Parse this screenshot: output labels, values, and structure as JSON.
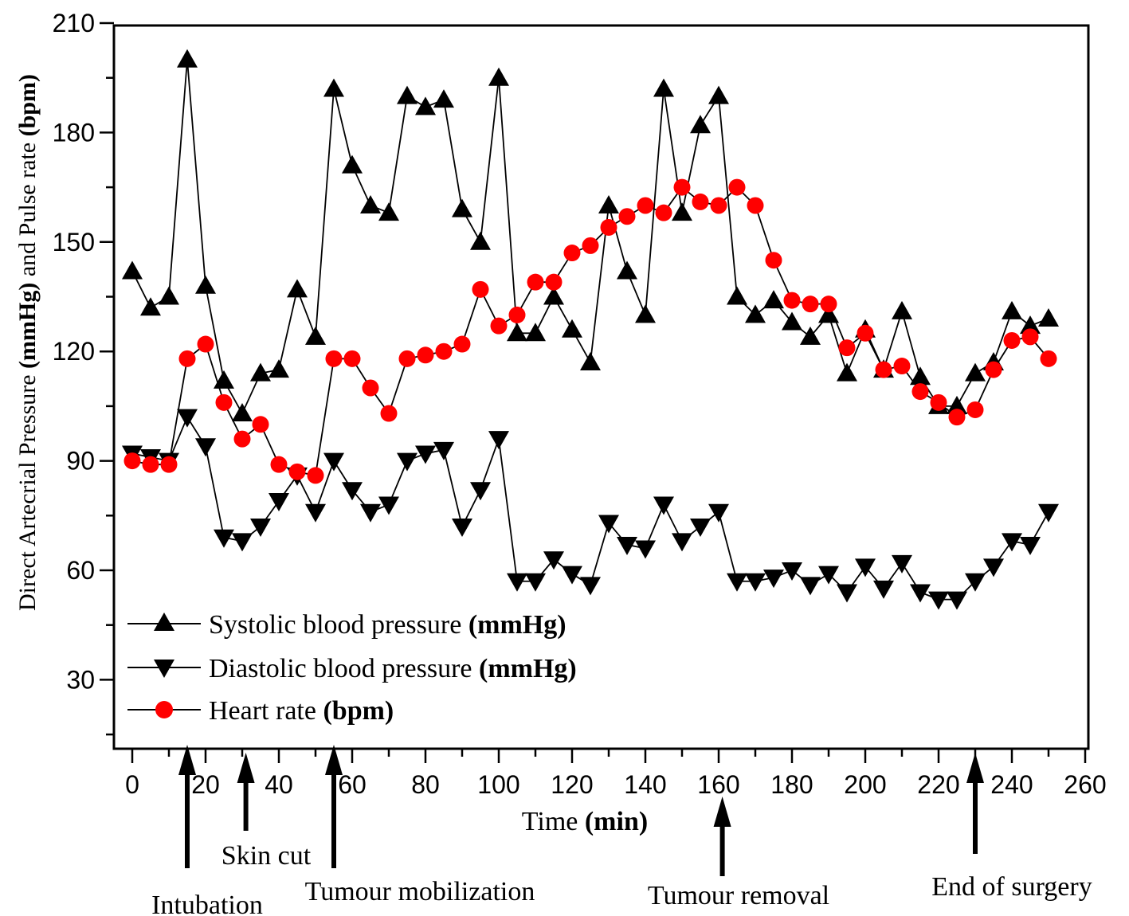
{
  "chart_data": {
    "type": "line",
    "title": "",
    "xlabel": "Time",
    "xlabel_unit": "(min)",
    "ylabel_prefix": "Direct Artecrial Pressure ",
    "ylabel_unit1": "(mmHg)",
    "ylabel_mid": " and Pulse rate ",
    "ylabel_unit2": "(bpm)",
    "xlim": [
      -5,
      260
    ],
    "ylim": [
      10,
      210
    ],
    "x_ticks": [
      0,
      20,
      40,
      60,
      80,
      100,
      120,
      140,
      160,
      180,
      200,
      220,
      240,
      260
    ],
    "y_ticks": [
      30,
      60,
      90,
      120,
      150,
      180,
      210
    ],
    "grid": false,
    "legend_position": "bottom-left",
    "x": [
      0,
      5,
      10,
      15,
      20,
      25,
      30,
      35,
      40,
      45,
      50,
      55,
      60,
      65,
      70,
      75,
      80,
      85,
      90,
      95,
      100,
      105,
      110,
      115,
      120,
      125,
      130,
      135,
      140,
      145,
      150,
      155,
      160,
      165,
      170,
      175,
      180,
      185,
      190,
      195,
      200,
      205,
      210,
      215,
      220,
      225,
      230,
      235,
      240,
      245,
      250
    ],
    "series": [
      {
        "name": "Systolic blood pressure ",
        "unit": "(mmHg)",
        "marker": "triangle-up",
        "color": "#000000",
        "values": [
          142,
          132,
          135,
          200,
          138,
          112,
          103,
          114,
          115,
          137,
          124,
          192,
          171,
          160,
          158,
          190,
          187,
          189,
          159,
          150,
          195,
          125,
          125,
          135,
          126,
          117,
          160,
          142,
          130,
          192,
          158,
          182,
          190,
          135,
          130,
          134,
          128,
          124,
          130,
          114,
          126,
          115,
          131,
          113,
          105,
          105,
          114,
          117,
          131,
          127,
          129
        ]
      },
      {
        "name": "Diastolic blood pressure ",
        "unit": "(mmHg)",
        "marker": "triangle-down",
        "color": "#000000",
        "values": [
          92,
          91,
          90,
          102,
          94,
          69,
          68,
          72,
          79,
          86,
          76,
          90,
          82,
          76,
          78,
          90,
          92,
          93,
          72,
          82,
          96,
          57,
          57,
          63,
          59,
          56,
          73,
          67,
          66,
          78,
          68,
          72,
          76,
          57,
          57,
          58,
          60,
          56,
          59,
          54,
          61,
          55,
          62,
          54,
          52,
          52,
          57,
          61,
          68,
          67,
          76
        ]
      },
      {
        "name": "Heart rate ",
        "unit": "(bpm)",
        "marker": "circle",
        "color": "#ff0000",
        "values": [
          90,
          89,
          89,
          118,
          122,
          106,
          96,
          100,
          89,
          87,
          86,
          118,
          118,
          110,
          103,
          118,
          119,
          120,
          122,
          137,
          127,
          130,
          139,
          139,
          147,
          149,
          154,
          157,
          160,
          158,
          165,
          161,
          160,
          165,
          160,
          145,
          134,
          133,
          133,
          121,
          125,
          115,
          116,
          109,
          106,
          102,
          104,
          115,
          123,
          124,
          118
        ]
      }
    ],
    "annotations": [
      {
        "label": "Intubation",
        "x": 15
      },
      {
        "label": "Skin cut",
        "x": 31
      },
      {
        "label": "Tumour mobilization",
        "x": 55
      },
      {
        "label": "Tumour removal",
        "x": 161
      },
      {
        "label": "End of surgery",
        "x": 230
      }
    ]
  }
}
